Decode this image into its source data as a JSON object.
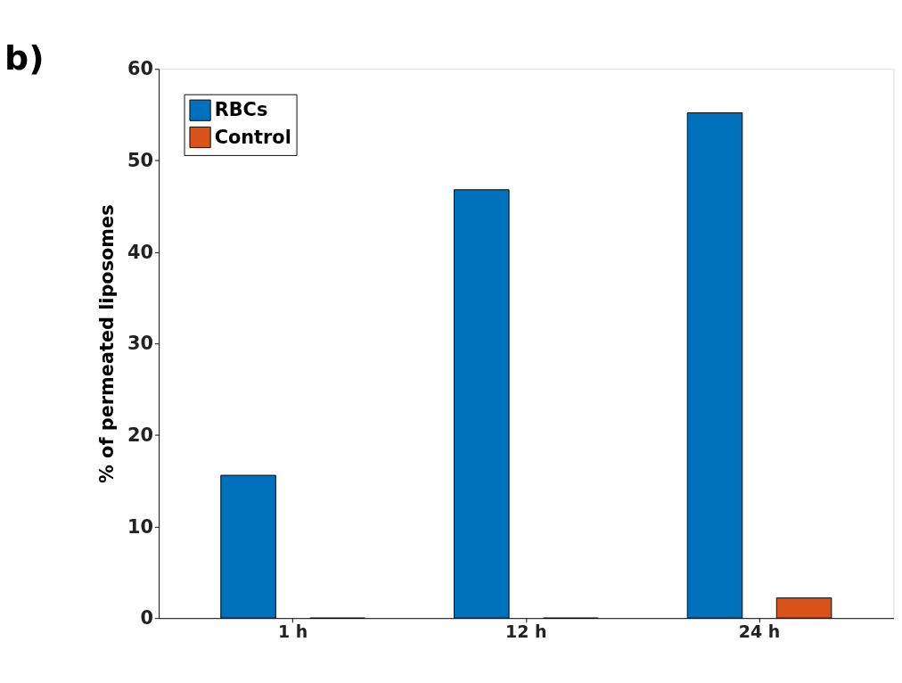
{
  "chart_data": {
    "type": "bar",
    "annotations": [
      "b)"
    ],
    "ylabel": "% of permeated liposomes",
    "categories": [
      "1 h",
      "12 h",
      "24 h"
    ],
    "series": [
      {
        "name": "RBCs",
        "color": "#0072bd",
        "values": [
          15.6,
          46.8,
          55.2
        ]
      },
      {
        "name": "Control",
        "color": "#d95319",
        "values": [
          0,
          0,
          2.2
        ]
      }
    ],
    "ylim": [
      0,
      60
    ],
    "yticks": [
      0,
      10,
      20,
      30,
      40,
      50,
      60
    ],
    "grid": false,
    "legend": "top left"
  }
}
